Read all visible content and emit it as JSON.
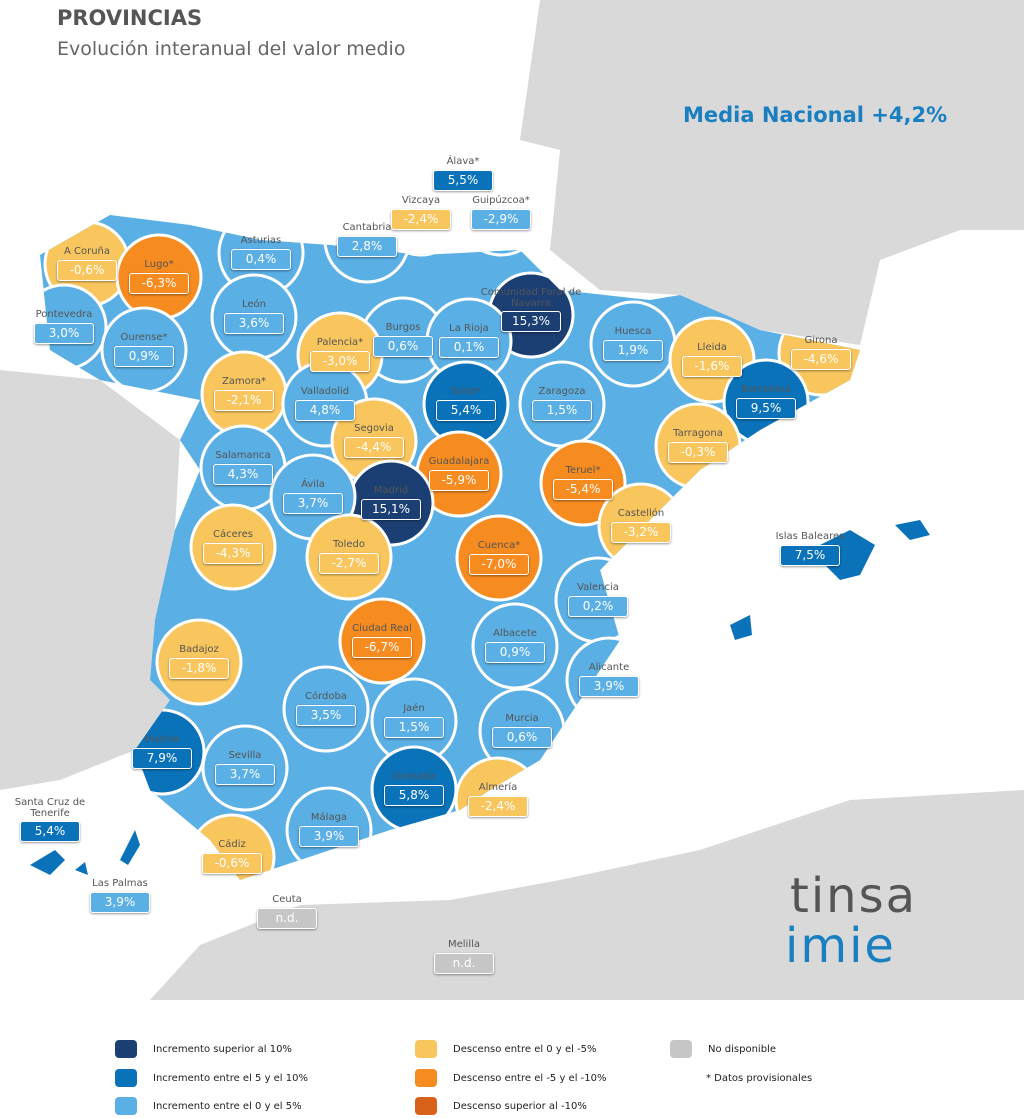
{
  "header": {
    "title": "PROVINCIAS",
    "subtitle": "Evolución interanual del valor medio",
    "national": "Media Nacional +4,2%"
  },
  "provinces": [
    {
      "name": "Álava*",
      "value": "5,5%",
      "color": "#0a72b8"
    },
    {
      "name": "Vizcaya",
      "value": "-2,4%",
      "color": "#f9c65e"
    },
    {
      "name": "Guipúzcoa*",
      "value": "-2,9%",
      "color": "#5aafe4"
    },
    {
      "name": "Cantabria",
      "value": "2,8%",
      "color": "#5aafe4"
    },
    {
      "name": "Asturias",
      "value": "0,4%",
      "color": "#5aafe4"
    },
    {
      "name": "A Coruña",
      "value": "-0,6%",
      "color": "#f9c65e"
    },
    {
      "name": "Lugo*",
      "value": "-6,3%",
      "color": "#f68b1f"
    },
    {
      "name": "Comunidad Foral de Navarra",
      "value": "15,3%",
      "color": "#1b3f73"
    },
    {
      "name": "León",
      "value": "3,6%",
      "color": "#5aafe4"
    },
    {
      "name": "Pontevedra",
      "value": "3,0%",
      "color": "#5aafe4"
    },
    {
      "name": "Huesca",
      "value": "1,9%",
      "color": "#5aafe4"
    },
    {
      "name": "Ourense*",
      "value": "0,9%",
      "color": "#5aafe4"
    },
    {
      "name": "Burgos",
      "value": "0,6%",
      "color": "#5aafe4"
    },
    {
      "name": "La Rioja",
      "value": "0,1%",
      "color": "#5aafe4"
    },
    {
      "name": "Palencia*",
      "value": "-3,0%",
      "color": "#f9c65e"
    },
    {
      "name": "Lleida",
      "value": "-1,6%",
      "color": "#f9c65e"
    },
    {
      "name": "Girona",
      "value": "-4,6%",
      "color": "#f9c65e"
    },
    {
      "name": "Zamora*",
      "value": "-2,1%",
      "color": "#f9c65e"
    },
    {
      "name": "Valladolid",
      "value": "4,8%",
      "color": "#5aafe4"
    },
    {
      "name": "Soria*",
      "value": "5,4%",
      "color": "#0a72b8"
    },
    {
      "name": "Barcelona",
      "value": "9,5%",
      "color": "#0a72b8"
    },
    {
      "name": "Zaragoza",
      "value": "1,5%",
      "color": "#5aafe4"
    },
    {
      "name": "Tarragona",
      "value": "-0,3%",
      "color": "#f9c65e"
    },
    {
      "name": "Segovia",
      "value": "-4,4%",
      "color": "#f9c65e"
    },
    {
      "name": "Salamanca",
      "value": "4,3%",
      "color": "#5aafe4"
    },
    {
      "name": "Guadalajara",
      "value": "-5,9%",
      "color": "#f68b1f"
    },
    {
      "name": "Teruel*",
      "value": "-5,4%",
      "color": "#f68b1f"
    },
    {
      "name": "Madrid",
      "value": "15,1%",
      "color": "#1b3f73"
    },
    {
      "name": "Ávila",
      "value": "3,7%",
      "color": "#5aafe4"
    },
    {
      "name": "Castellón",
      "value": "-3,2%",
      "color": "#f9c65e"
    },
    {
      "name": "Islas Baleares",
      "value": "7,5%",
      "color": "#0a72b8"
    },
    {
      "name": "Cáceres",
      "value": "-4,3%",
      "color": "#f9c65e"
    },
    {
      "name": "Toledo",
      "value": "-2,7%",
      "color": "#f9c65e"
    },
    {
      "name": "Cuenca*",
      "value": "-7,0%",
      "color": "#f68b1f"
    },
    {
      "name": "Valencia",
      "value": "0,2%",
      "color": "#5aafe4"
    },
    {
      "name": "Ciudad Real",
      "value": "-6,7%",
      "color": "#f68b1f"
    },
    {
      "name": "Albacete",
      "value": "0,9%",
      "color": "#5aafe4"
    },
    {
      "name": "Badajoz",
      "value": "-1,8%",
      "color": "#f9c65e"
    },
    {
      "name": "Alicante",
      "value": "3,9%",
      "color": "#5aafe4"
    },
    {
      "name": "Córdoba",
      "value": "3,5%",
      "color": "#5aafe4"
    },
    {
      "name": "Jaén",
      "value": "1,5%",
      "color": "#5aafe4"
    },
    {
      "name": "Murcia",
      "value": "0,6%",
      "color": "#5aafe4"
    },
    {
      "name": "Huelva",
      "value": "7,9%",
      "color": "#0a72b8"
    },
    {
      "name": "Sevilla",
      "value": "3,7%",
      "color": "#5aafe4"
    },
    {
      "name": "Granada",
      "value": "5,8%",
      "color": "#0a72b8"
    },
    {
      "name": "Almería",
      "value": "-2,4%",
      "color": "#f9c65e"
    },
    {
      "name": "Santa Cruz de Tenerife",
      "value": "5,4%",
      "color": "#0a72b8"
    },
    {
      "name": "Málaga",
      "value": "3,9%",
      "color": "#5aafe4"
    },
    {
      "name": "Cádiz",
      "value": "-0,6%",
      "color": "#f9c65e"
    },
    {
      "name": "Las Palmas",
      "value": "3,9%",
      "color": "#5aafe4"
    },
    {
      "name": "Ceuta",
      "value": "n.d.",
      "color": "#c6c6c6"
    },
    {
      "name": "Melilla",
      "value": "n.d.",
      "color": "#c6c6c6"
    }
  ],
  "logo": {
    "top": "tinsa",
    "bottom": "imie"
  },
  "legend": {
    "items": [
      {
        "label": "Incremento superior al 10%",
        "color": "#1b3f73"
      },
      {
        "label": "Incremento entre el 5 y el 10%",
        "color": "#0a72b8"
      },
      {
        "label": "Incremento entre el 0 y el 5%",
        "color": "#5aafe4"
      },
      {
        "label": "Descenso entre el 0 y el -5%",
        "color": "#f9c65e"
      },
      {
        "label": "Descenso entre el -5 y el -10%",
        "color": "#f68b1f"
      },
      {
        "label": "Descenso superior al -10%",
        "color": "#d9621a"
      },
      {
        "label": "No disponible",
        "color": "#c6c6c6"
      }
    ],
    "note": "* Datos provisionales"
  }
}
